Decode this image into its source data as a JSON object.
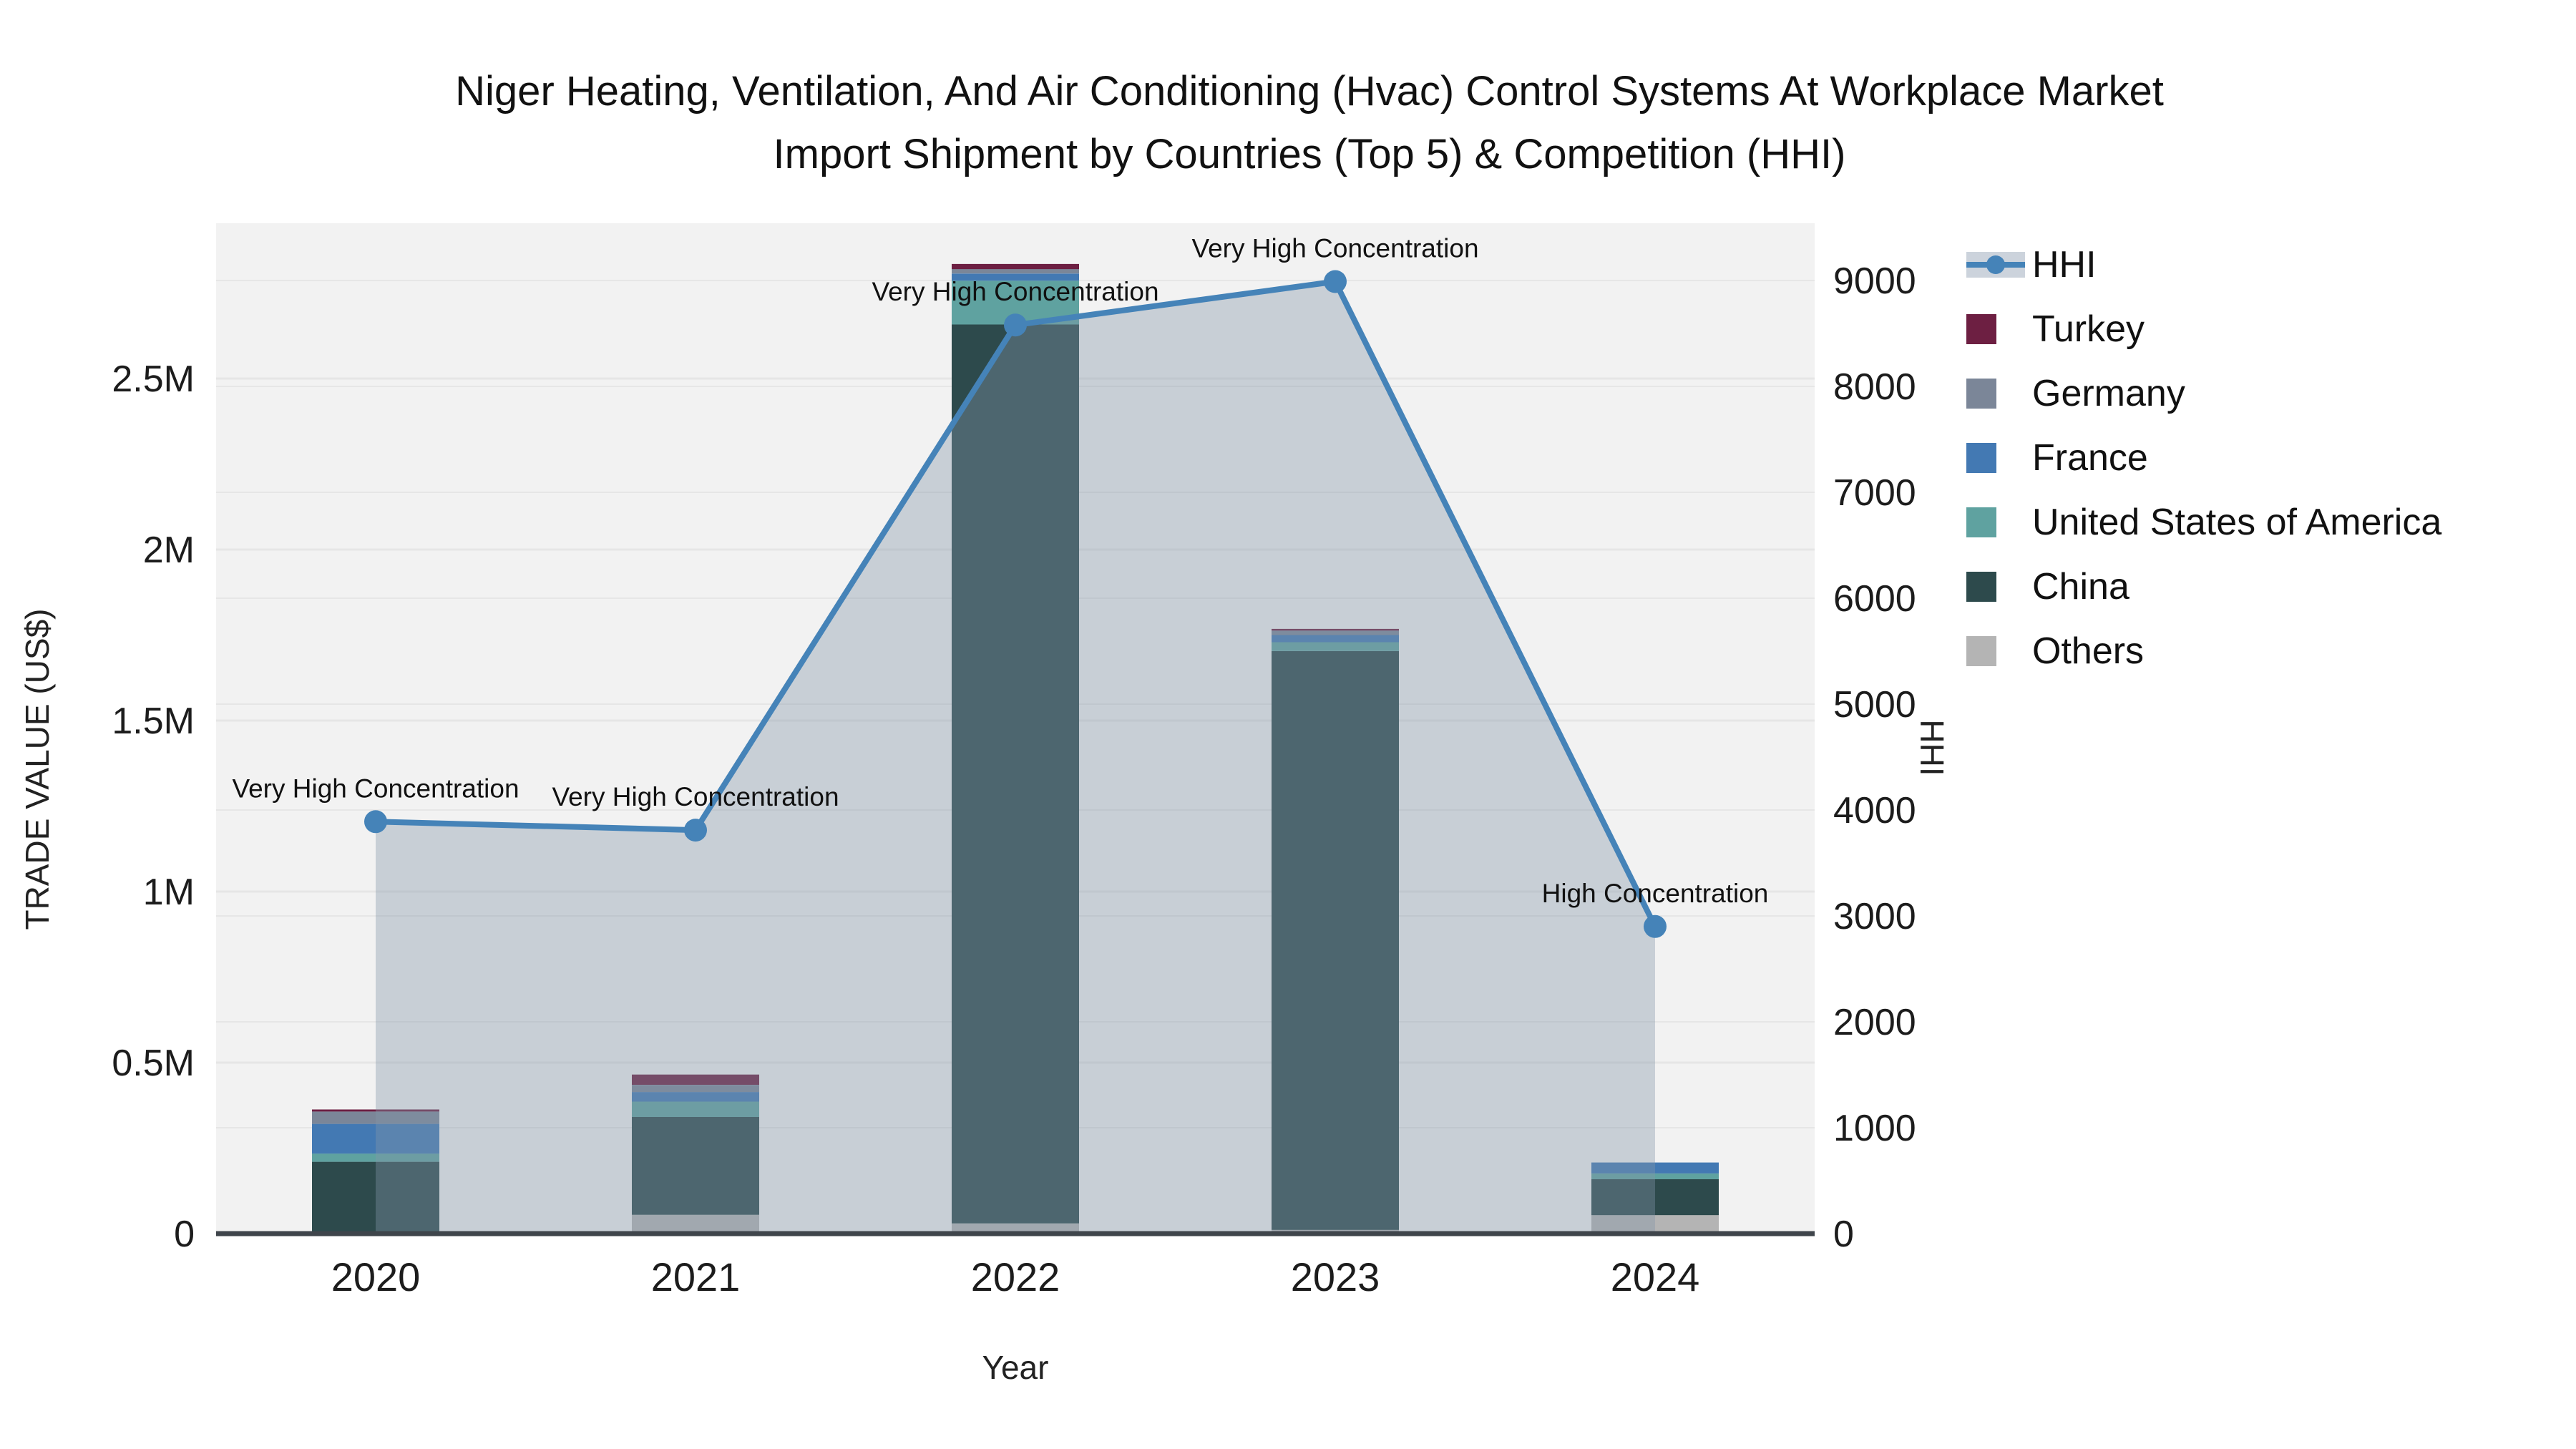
{
  "title": {
    "line1": "Niger Heating, Ventilation, And Air Conditioning (Hvac) Control Systems At Workplace Market",
    "line2": "Import Shipment by Countries (Top 5) & Competition (HHI)"
  },
  "axes": {
    "x_title": "Year",
    "y_left_title": "TRADE VALUE (US$)",
    "y_right_title": "HHI"
  },
  "chart_data": {
    "type": "combo",
    "subtypes": [
      "stacked-bar",
      "line-area"
    ],
    "categories": [
      "2020",
      "2021",
      "2022",
      "2023",
      "2024"
    ],
    "bar_axis": "left",
    "bar_value_unit": "US$",
    "series": [
      {
        "name": "Others",
        "color": "#b4b4b4",
        "values": [
          6000,
          55000,
          30000,
          11000,
          54000
        ]
      },
      {
        "name": "China",
        "color": "#2d4a4c",
        "values": [
          204000,
          286000,
          2628000,
          1692000,
          105000
        ]
      },
      {
        "name": "United States of America",
        "color": "#5fa2a0",
        "values": [
          24000,
          45000,
          128000,
          26000,
          17000
        ]
      },
      {
        "name": "France",
        "color": "#4379b3",
        "values": [
          87000,
          28000,
          21000,
          21000,
          32000
        ]
      },
      {
        "name": "Germany",
        "color": "#7b8698",
        "values": [
          36000,
          21000,
          13000,
          13000,
          0
        ]
      },
      {
        "name": "Turkey",
        "color": "#6d1f42",
        "values": [
          6000,
          30000,
          15000,
          5000,
          0
        ]
      }
    ],
    "line_series": {
      "name": "HHI",
      "axis": "right",
      "color": "#4583b8",
      "area_color": "rgba(132,149,168,0.38)",
      "values": [
        3890,
        3810,
        8580,
        8990,
        2900
      ]
    },
    "annotations": [
      {
        "x": "2020",
        "text": "Very High Concentration"
      },
      {
        "x": "2021",
        "text": "Very High Concentration"
      },
      {
        "x": "2022",
        "text": "Very High Concentration"
      },
      {
        "x": "2023",
        "text": "Very High Concentration"
      },
      {
        "x": "2024",
        "text": "High Concentration"
      }
    ],
    "y_left": {
      "ticks": [
        {
          "v": 0,
          "label": "0"
        },
        {
          "v": 500000,
          "label": "0.5M"
        },
        {
          "v": 1000000,
          "label": "1M"
        },
        {
          "v": 1500000,
          "label": "1.5M"
        },
        {
          "v": 2000000,
          "label": "2M"
        },
        {
          "v": 2500000,
          "label": "2.5M"
        }
      ],
      "range": [
        0,
        2954000
      ]
    },
    "y_right": {
      "ticks": [
        {
          "v": 0,
          "label": "0"
        },
        {
          "v": 1000,
          "label": "1000"
        },
        {
          "v": 2000,
          "label": "2000"
        },
        {
          "v": 3000,
          "label": "3000"
        },
        {
          "v": 4000,
          "label": "4000"
        },
        {
          "v": 5000,
          "label": "5000"
        },
        {
          "v": 6000,
          "label": "6000"
        },
        {
          "v": 7000,
          "label": "7000"
        },
        {
          "v": 8000,
          "label": "8000"
        },
        {
          "v": 9000,
          "label": "9000"
        }
      ],
      "range": [
        0,
        9540
      ]
    },
    "grid": true,
    "legend_position": "right"
  },
  "legend": {
    "items": [
      {
        "name": "HHI",
        "type": "line",
        "color": "#4583b8",
        "band_color": "#ccd3dc"
      },
      {
        "name": "Turkey",
        "type": "swatch",
        "color": "#6d1f42"
      },
      {
        "name": "Germany",
        "type": "swatch",
        "color": "#7b8698"
      },
      {
        "name": "France",
        "type": "swatch",
        "color": "#4379b3"
      },
      {
        "name": "United States of America",
        "type": "swatch",
        "color": "#5fa2a0"
      },
      {
        "name": "China",
        "type": "swatch",
        "color": "#2d4a4c"
      },
      {
        "name": "Others",
        "type": "swatch",
        "color": "#b4b4b4"
      }
    ]
  },
  "colors": {
    "plot_bg": "#f2f2f2",
    "figure_bg": "#ffffff",
    "gridline": "#e6e6e6",
    "axis_line": "#3f454b",
    "text": "#111111"
  }
}
